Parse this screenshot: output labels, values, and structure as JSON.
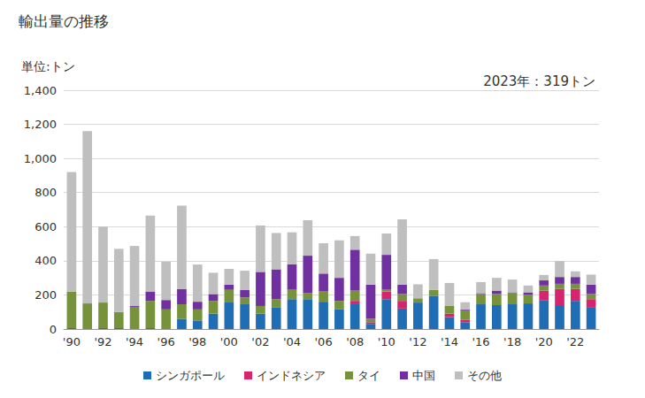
{
  "chart_data": {
    "type": "bar",
    "title": "輸出量の推移",
    "ylabel": "単位:トン",
    "annotations": [
      "2023年：319トン"
    ],
    "stacked": true,
    "grid": true,
    "legend": "bottom",
    "categories": [
      "'90",
      null,
      "'92",
      null,
      "'94",
      null,
      "'96",
      null,
      "'98",
      null,
      "'00",
      null,
      "'02",
      null,
      "'04",
      null,
      "'06",
      null,
      "'08",
      null,
      "'10",
      null,
      "'12",
      null,
      "'14",
      null,
      "'16",
      null,
      "'18",
      null,
      "'20",
      null,
      "'22",
      null
    ],
    "series": [
      {
        "name": "シンガポール",
        "color": "#1f6db5",
        "values": [
          5,
          0,
          5,
          5,
          0,
          5,
          0,
          60,
          50,
          90,
          155,
          145,
          90,
          125,
          175,
          175,
          160,
          115,
          150,
          30,
          175,
          120,
          155,
          195,
          70,
          40,
          145,
          140,
          145,
          150,
          170,
          140,
          165,
          125
        ]
      },
      {
        "name": "インドネシア",
        "color": "#d6246e",
        "values": [
          0,
          0,
          0,
          0,
          0,
          0,
          0,
          0,
          0,
          0,
          0,
          0,
          0,
          0,
          0,
          0,
          0,
          0,
          15,
          10,
          45,
          45,
          0,
          0,
          20,
          15,
          0,
          0,
          0,
          0,
          55,
          95,
          70,
          50
        ]
      },
      {
        "name": "タイ",
        "color": "#76933c",
        "values": [
          215,
          150,
          150,
          95,
          130,
          160,
          115,
          85,
          65,
          75,
          75,
          40,
          45,
          50,
          55,
          35,
          60,
          50,
          60,
          20,
          10,
          40,
          25,
          35,
          45,
          55,
          60,
          65,
          65,
          50,
          30,
          30,
          30,
          30
        ]
      },
      {
        "name": "中国",
        "color": "#7030a0",
        "values": [
          0,
          0,
          0,
          0,
          5,
          55,
          55,
          90,
          45,
          40,
          30,
          45,
          200,
          175,
          150,
          220,
          105,
          135,
          240,
          200,
          205,
          55,
          0,
          0,
          0,
          5,
          5,
          20,
          5,
          15,
          30,
          40,
          40,
          55
        ]
      },
      {
        "name": "その他",
        "color": "#bfbfbf",
        "values": [
          700,
          1010,
          445,
          370,
          352,
          445,
          225,
          488,
          218,
          125,
          92,
          112,
          272,
          213,
          187,
          208,
          178,
          220,
          80,
          182,
          125,
          383,
          82,
          180,
          135,
          42,
          65,
          75,
          75,
          40,
          32,
          93,
          33,
          59
        ]
      }
    ],
    "ylim": [
      0,
      1400
    ],
    "yticks": [
      0,
      200,
      400,
      600,
      800,
      {
        "value": 1000,
        "label": "1,000"
      },
      {
        "value": 1200,
        "label": "1,200"
      },
      {
        "value": 1400,
        "label": "1,400"
      }
    ]
  }
}
